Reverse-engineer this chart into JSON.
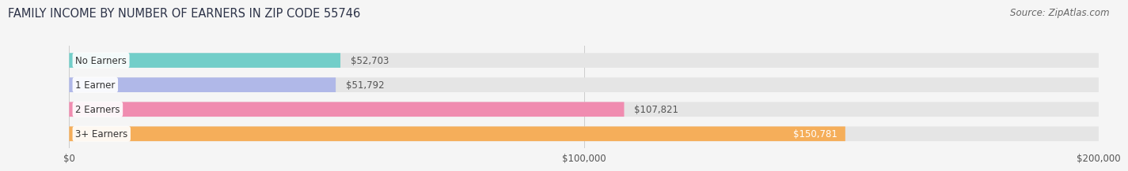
{
  "title": "FAMILY INCOME BY NUMBER OF EARNERS IN ZIP CODE 55746",
  "source": "Source: ZipAtlas.com",
  "categories": [
    "No Earners",
    "1 Earner",
    "2 Earners",
    "3+ Earners"
  ],
  "values": [
    52703,
    51792,
    107821,
    150781
  ],
  "bar_colors": [
    "#72cec9",
    "#b0b8e8",
    "#f08cb0",
    "#f5ae5a"
  ],
  "value_labels": [
    "$52,703",
    "$51,792",
    "$107,821",
    "$150,781"
  ],
  "xlim_max": 200000,
  "xtick_values": [
    0,
    100000,
    200000
  ],
  "xtick_labels": [
    "$0",
    "$100,000",
    "$200,000"
  ],
  "background_color": "#f5f5f5",
  "bar_bg_color": "#e5e5e5",
  "title_fontsize": 10.5,
  "source_fontsize": 8.5,
  "bar_label_fontsize": 8.5,
  "value_fontsize": 8.5,
  "tick_fontsize": 8.5,
  "title_color": "#2d3348",
  "source_color": "#666666",
  "grid_color": "#cccccc"
}
